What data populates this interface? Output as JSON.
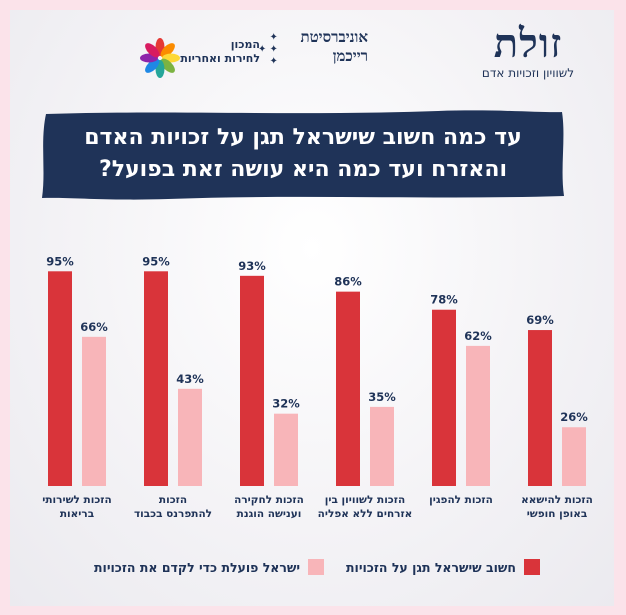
{
  "logos": {
    "zulat_mark": "זולת",
    "zulat_sub": "לשוויון וזכויות אדם",
    "reichman_line1": "אוניברסיטת",
    "reichman_line2": "רייכמן",
    "institute_line1": "המכון",
    "institute_line2": "לחירות ואחריות"
  },
  "title_line1": "עד כמה חשוב שישראל תגן על זכויות האדם",
  "title_line2": "והאזרח ועד כמה היא עושה זאת בפועל?",
  "colors": {
    "important": "#d9343a",
    "actual": "#f8b5b9",
    "navy": "#1f3358",
    "frame": "#fbe3ea"
  },
  "legend": {
    "important": "חשוב שישראל תגן על הזכויות",
    "actual": "ישראל פועלת כדי לקדם את הזכויות"
  },
  "chart_data": {
    "type": "bar",
    "title": "עד כמה חשוב שישראל תגן על זכויות האדם והאזרח ועד כמה היא עושה זאת בפועל?",
    "unit": "%",
    "ylim": [
      0,
      100
    ],
    "grid": false,
    "legend_position": "bottom",
    "categories": [
      [
        "הזכות לשירותי",
        "בריאות"
      ],
      [
        "הזכות",
        "להתפרנס בכבוד"
      ],
      [
        "הזכות לחקירה",
        "וענישה הוגנת"
      ],
      [
        "הזכות לשוויון בין",
        "אזרחים ללא אפליה"
      ],
      [
        "הזכות להפגין"
      ],
      [
        "הזכות להישאא",
        "באופן חופשי"
      ]
    ],
    "series": [
      {
        "name": "חשוב שישראל תגן על הזכויות",
        "values": [
          95,
          95,
          93,
          86,
          78,
          69
        ],
        "labels": [
          "95%",
          "95%",
          "93%",
          "86%",
          "78%",
          "69%"
        ]
      },
      {
        "name": "ישראל פועלת כדי לקדם את הזכויות",
        "values": [
          66,
          43,
          32,
          35,
          62,
          26
        ],
        "labels": [
          "66%",
          "43%",
          "32%",
          "35%",
          "62%",
          "26%"
        ]
      }
    ]
  }
}
